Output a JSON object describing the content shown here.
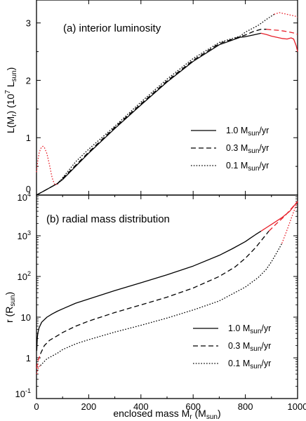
{
  "chart_data": [
    {
      "panel": "(a)",
      "type": "line",
      "title": "(a) interior luminosity",
      "ylabel": "L(Mr)  (10^7 Lsun)",
      "ylabel_parts": {
        "main": "L(M",
        "sub": "r",
        "mid": ")  (10",
        "sup": "7",
        "unit_main": " L",
        "unit_sub": "sun",
        "end": ")"
      },
      "xlim": [
        0,
        1000
      ],
      "ylim": [
        0,
        3.4
      ],
      "yticks": [
        0,
        1,
        2,
        3
      ],
      "ytick_labels": [
        "0",
        "1",
        "2",
        "3"
      ],
      "scale": "linear",
      "legend_position": "right-middle",
      "legend": [
        {
          "label": "1.0 Msun/yr",
          "main": "1.0 M",
          "sub": "sun",
          "end": "/yr",
          "style": "solid"
        },
        {
          "label": "0.3 Msun/yr",
          "main": "0.3 M",
          "sub": "sun",
          "end": "/yr",
          "style": "dashed"
        },
        {
          "label": "0.1 Msun/yr",
          "main": "0.1 M",
          "sub": "sun",
          "end": "/yr",
          "style": "dotted"
        }
      ],
      "series": [
        {
          "name": "1.0 Msun/yr",
          "style": "solid",
          "color": "#000000",
          "x": [
            0,
            20,
            40,
            60,
            80,
            100,
            150,
            200,
            300,
            400,
            500,
            600,
            700,
            780,
            800,
            830,
            860
          ],
          "y": [
            0,
            0.05,
            0.1,
            0.15,
            0.2,
            0.27,
            0.5,
            0.73,
            1.16,
            1.57,
            1.97,
            2.33,
            2.62,
            2.75,
            2.76,
            2.79,
            2.82
          ]
        },
        {
          "name": "1.0 Msun/yr (red segment)",
          "style": "solid",
          "color": "#e8202a",
          "x": [
            860,
            880,
            900,
            920,
            940,
            960,
            975,
            985,
            995,
            1000
          ],
          "y": [
            2.82,
            2.8,
            2.77,
            2.75,
            2.73,
            2.72,
            2.74,
            2.72,
            2.6,
            2.5
          ]
        },
        {
          "name": "0.3 Msun/yr",
          "style": "dashed",
          "color": "#000000",
          "x": [
            0,
            20,
            40,
            60,
            80,
            100,
            150,
            200,
            300,
            400,
            500,
            600,
            700,
            780,
            800,
            830,
            860,
            880
          ],
          "y": [
            0,
            0.05,
            0.1,
            0.15,
            0.2,
            0.29,
            0.52,
            0.75,
            1.18,
            1.59,
            1.99,
            2.35,
            2.64,
            2.76,
            2.79,
            2.85,
            2.89,
            2.89
          ]
        },
        {
          "name": "0.3 Msun/yr (red segment)",
          "style": "dashed",
          "color": "#e8202a",
          "x": [
            880,
            900,
            930,
            960,
            990,
            1000
          ],
          "y": [
            2.89,
            2.88,
            2.87,
            2.85,
            2.82,
            2.8
          ]
        },
        {
          "name": "0.1 Msun/yr (red segment, inner)",
          "style": "dotted",
          "color": "#e8202a",
          "x": [
            0,
            5,
            10,
            15,
            20,
            25,
            30,
            40,
            50,
            60,
            70,
            80
          ],
          "y": [
            0.4,
            0.6,
            0.73,
            0.8,
            0.84,
            0.85,
            0.83,
            0.72,
            0.52,
            0.3,
            0.18,
            0.19
          ]
        },
        {
          "name": "0.1 Msun/yr",
          "style": "dotted",
          "color": "#000000",
          "x": [
            80,
            100,
            150,
            200,
            300,
            400,
            500,
            600,
            700,
            780,
            800,
            850,
            880,
            910
          ],
          "y": [
            0.19,
            0.3,
            0.58,
            0.8,
            1.2,
            1.62,
            2.02,
            2.38,
            2.66,
            2.77,
            2.84,
            2.96,
            3.06,
            3.15
          ]
        },
        {
          "name": "0.1 Msun/yr (red segment, outer)",
          "style": "dotted",
          "color": "#e8202a",
          "x": [
            910,
            930,
            950,
            970,
            990,
            1000
          ],
          "y": [
            3.15,
            3.18,
            3.16,
            3.14,
            3.12,
            3.1
          ]
        }
      ]
    },
    {
      "panel": "(b)",
      "type": "line",
      "title": "(b) radial mass distribution",
      "xlabel": "enclosed mass  Mr (Msun)",
      "xlabel_parts": {
        "main": "enclosed mass  M",
        "sub": "r",
        "mid": " (M",
        "unit_sub": "sun",
        "end": ")"
      },
      "ylabel": "r (Rsun)",
      "ylabel_parts": {
        "main": "r (R",
        "sub": "sun",
        "end": ")"
      },
      "xlim": [
        0,
        1000
      ],
      "ylim": [
        0.1,
        10000
      ],
      "scale": "log",
      "xticks": [
        0,
        200,
        400,
        600,
        800,
        1000
      ],
      "xtick_labels": [
        "0",
        "200",
        "400",
        "600",
        "800",
        "1000"
      ],
      "yticks": [
        0.1,
        1,
        10,
        100,
        1000,
        10000
      ],
      "ytick_labels": [
        {
          "base": "10",
          "sup": "-1"
        },
        {
          "base": "1",
          "sup": ""
        },
        {
          "base": "10",
          "sup": ""
        },
        {
          "base": "10",
          "sup": "2"
        },
        {
          "base": "10",
          "sup": "3"
        },
        {
          "base": "10",
          "sup": "4"
        }
      ],
      "legend_position": "right-bottom",
      "legend": [
        {
          "label": "1.0 Msun/yr",
          "main": "1.0 M",
          "sub": "sun",
          "end": "/yr",
          "style": "solid"
        },
        {
          "label": "0.3 Msun/yr",
          "main": "0.3 M",
          "sub": "sun",
          "end": "/yr",
          "style": "dashed"
        },
        {
          "label": "0.1 Msun/yr",
          "main": "0.1 M",
          "sub": "sun",
          "end": "/yr",
          "style": "dotted"
        }
      ],
      "series": [
        {
          "name": "1.0 Msun/yr",
          "style": "solid",
          "color": "#000000",
          "x": [
            1,
            3,
            5,
            10,
            20,
            40,
            60,
            80,
            100,
            150,
            200,
            300,
            400,
            500,
            600,
            700,
            750,
            800,
            820,
            840,
            860
          ],
          "y": [
            1.5,
            3,
            4,
            5.5,
            7.5,
            10,
            12,
            14,
            16,
            22,
            28,
            45,
            70,
            110,
            180,
            330,
            480,
            720,
            880,
            1080,
            1300
          ]
        },
        {
          "name": "1.0 Msun/yr (red segment)",
          "style": "solid",
          "color": "#e8202a",
          "x": [
            860,
            900,
            940,
            970,
            990,
            1000
          ],
          "y": [
            1300,
            1900,
            2800,
            4000,
            5800,
            7000
          ]
        },
        {
          "name": "0.3 Msun/yr (red segment, inner)",
          "style": "dashed",
          "color": "#e8202a",
          "x": [
            1,
            3,
            6,
            10,
            15
          ],
          "y": [
            0.55,
            0.7,
            0.85,
            1.0,
            1.25
          ]
        },
        {
          "name": "0.3 Msun/yr",
          "style": "dashed",
          "color": "#000000",
          "x": [
            15,
            30,
            50,
            80,
            100,
            150,
            200,
            300,
            400,
            500,
            600,
            700,
            760,
            800,
            840,
            870,
            890
          ],
          "y": [
            1.25,
            2.0,
            2.7,
            3.5,
            4.2,
            6,
            8,
            13,
            20,
            31,
            52,
            100,
            170,
            280,
            520,
            900,
            1300
          ]
        },
        {
          "name": "0.3 Msun/yr (red segment, outer)",
          "style": "dashed",
          "color": "#e8202a",
          "x": [
            890,
            920,
            950,
            980,
            1000
          ],
          "y": [
            1300,
            2000,
            3000,
            5000,
            7000
          ]
        },
        {
          "name": "0.1 Msun/yr (red segment, inner)",
          "style": "dotted",
          "color": "#e8202a",
          "x": [
            1,
            3,
            6,
            10,
            15
          ],
          "y": [
            0.4,
            0.48,
            0.55,
            0.6,
            0.65
          ]
        },
        {
          "name": "0.1 Msun/yr",
          "style": "dotted",
          "color": "#000000",
          "x": [
            15,
            40,
            80,
            100,
            150,
            200,
            300,
            400,
            500,
            600,
            700,
            800,
            850,
            880,
            900,
            920,
            940
          ],
          "y": [
            0.65,
            0.95,
            1.3,
            1.6,
            2.2,
            2.8,
            4.3,
            6.3,
            9.5,
            15,
            25,
            55,
            95,
            150,
            230,
            380,
            650
          ]
        },
        {
          "name": "0.1 Msun/yr (red segment, outer)",
          "style": "dotted",
          "color": "#e8202a",
          "x": [
            940,
            960,
            980,
            1000
          ],
          "y": [
            650,
            1400,
            3200,
            7000
          ]
        }
      ]
    }
  ]
}
